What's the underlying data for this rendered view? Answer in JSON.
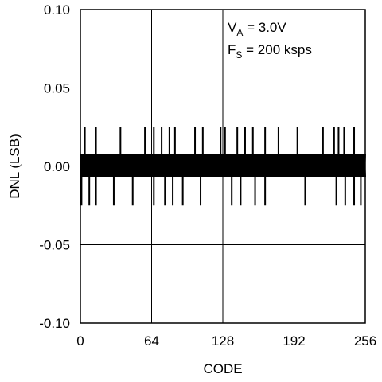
{
  "chart_data": {
    "type": "line",
    "title": "",
    "xlabel": "CODE",
    "ylabel": "DNL (LSB)",
    "xlim": [
      0,
      256
    ],
    "ylim": [
      -0.1,
      0.1
    ],
    "x_ticks": [
      0,
      64,
      128,
      192,
      256
    ],
    "x_tick_labels": [
      "0",
      "64",
      "128",
      "192",
      "256"
    ],
    "y_ticks": [
      0.1,
      0.05,
      0.0,
      -0.05,
      -0.1
    ],
    "y_tick_labels": [
      "0.10",
      "0.05",
      "0.00",
      "-0.05",
      "-0.10"
    ],
    "grid": true,
    "annotations": [
      {
        "main": "V",
        "sub": "A",
        "rest": " = 3.0V"
      },
      {
        "main": "F",
        "sub": "S",
        "rest": " = 200 ksps"
      }
    ],
    "series": [
      {
        "line_color": "#000000",
        "baseline_band": [
          -0.007,
          0.008
        ],
        "spikes_up": [
          4,
          14,
          36,
          58,
          66,
          73,
          80,
          85,
          103,
          110,
          126,
          130,
          141,
          148,
          155,
          166,
          178,
          195,
          218,
          228,
          232,
          237,
          246
        ],
        "spikes_down": [
          1,
          8,
          14,
          30,
          47,
          66,
          76,
          83,
          92,
          108,
          136,
          144,
          157,
          166,
          202,
          230,
          238,
          246,
          252
        ],
        "spike_up_value": 0.025,
        "spike_down_value": -0.025
      }
    ]
  }
}
